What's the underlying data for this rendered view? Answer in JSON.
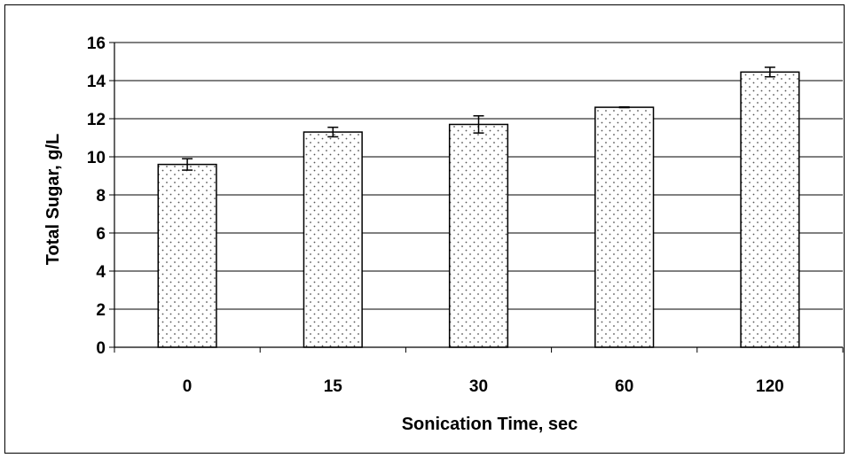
{
  "chart_data": {
    "type": "bar",
    "title": "",
    "xlabel": "Sonication Time, sec",
    "ylabel": "Total Sugar, g/L",
    "categories": [
      "0",
      "15",
      "30",
      "60",
      "120"
    ],
    "values": [
      9.6,
      11.3,
      11.7,
      12.6,
      14.45
    ],
    "errors": [
      0.3,
      0.25,
      0.45,
      0.02,
      0.25
    ],
    "ylim": [
      0,
      16
    ],
    "yticks": [
      "0",
      "2",
      "4",
      "6",
      "8",
      "10",
      "12",
      "14",
      "16"
    ],
    "grid": true,
    "legend": "none",
    "bar_fill": "dotted",
    "colors": {
      "bar_edge": "#000000",
      "dot": "#555555",
      "grid": "#000000"
    }
  }
}
